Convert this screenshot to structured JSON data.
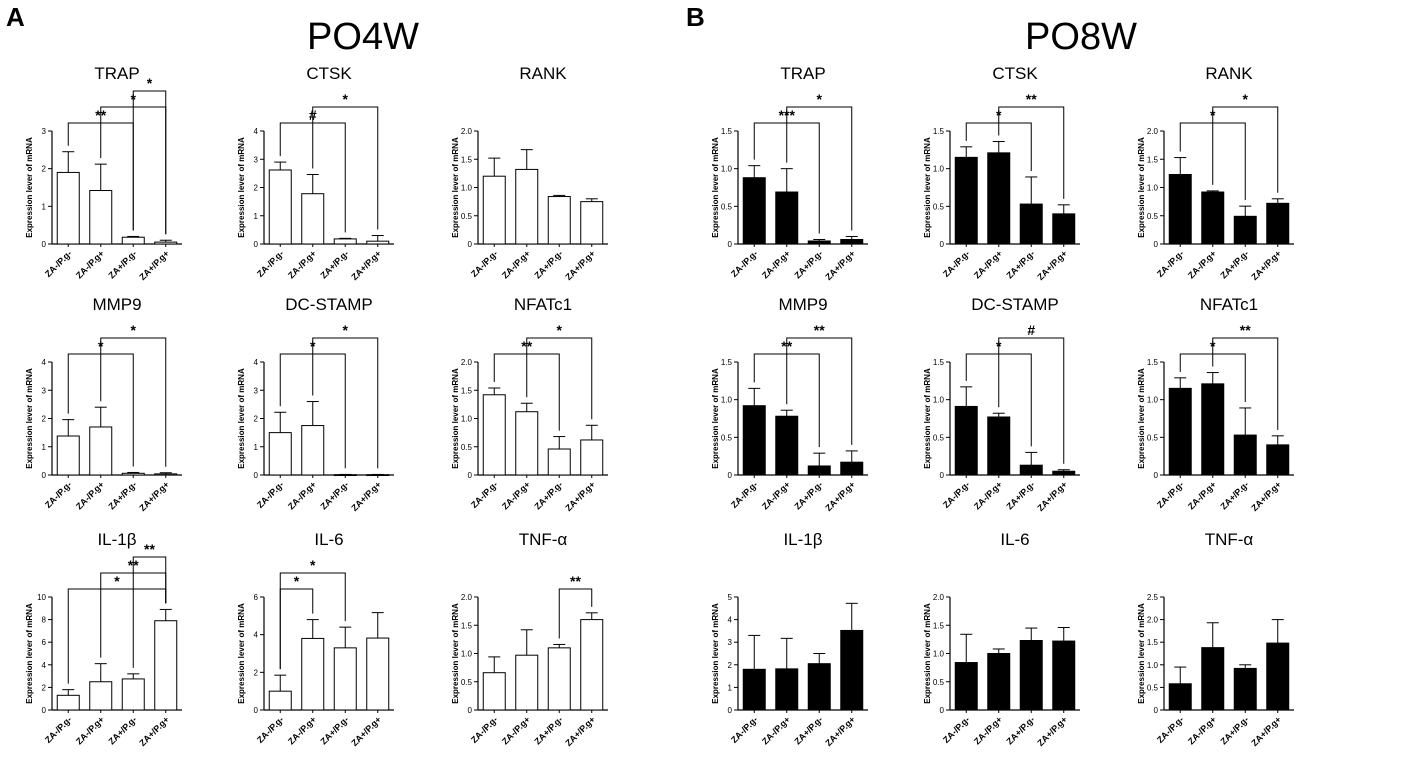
{
  "panels": [
    {
      "letter": "A",
      "title": "PO4W",
      "fill": "#ffffff"
    },
    {
      "letter": "B",
      "title": "PO8W",
      "fill": "#000000"
    }
  ],
  "ylabel": "Expression lever of mRNA",
  "categories": [
    "ZA-/P.g-",
    "ZA-/P.g+",
    "ZA+/P.g-",
    "ZA+/P.g+"
  ],
  "chart_data": [
    {
      "type": "bar",
      "panel": "A",
      "title": "TRAP",
      "ylim": [
        0,
        3
      ],
      "yticks": [
        0,
        1,
        2,
        3
      ],
      "values": [
        1.9,
        1.42,
        0.18,
        0.05
      ],
      "errors": [
        0.55,
        0.7,
        0.02,
        0.05
      ],
      "sig": [
        {
          "from": 0,
          "to": 2,
          "label": "**"
        },
        {
          "from": 1,
          "to": 3,
          "label": "*"
        },
        {
          "from": 2,
          "to": 3,
          "label": "*"
        }
      ]
    },
    {
      "type": "bar",
      "panel": "A",
      "title": "CTSK",
      "ylim": [
        0,
        4
      ],
      "yticks": [
        0,
        1,
        2,
        3,
        4
      ],
      "values": [
        2.62,
        1.78,
        0.18,
        0.1
      ],
      "errors": [
        0.28,
        0.68,
        0.02,
        0.2
      ],
      "sig": [
        {
          "from": 0,
          "to": 2,
          "label": "#"
        },
        {
          "from": 1,
          "to": 3,
          "label": "*"
        }
      ]
    },
    {
      "type": "bar",
      "panel": "A",
      "title": "RANK",
      "ylim": [
        0,
        2
      ],
      "yticks": [
        0,
        0.5,
        1.0,
        1.5,
        2.0
      ],
      "values": [
        1.2,
        1.32,
        0.84,
        0.75
      ],
      "errors": [
        0.32,
        0.35,
        0.02,
        0.05
      ],
      "sig": []
    },
    {
      "type": "bar",
      "panel": "A",
      "title": "MMP9",
      "ylim": [
        0,
        4
      ],
      "yticks": [
        0,
        1,
        2,
        3,
        4
      ],
      "values": [
        1.38,
        1.7,
        0.06,
        0.04
      ],
      "errors": [
        0.58,
        0.7,
        0.03,
        0.04
      ],
      "sig": [
        {
          "from": 0,
          "to": 2,
          "label": "*"
        },
        {
          "from": 1,
          "to": 3,
          "label": "*"
        }
      ]
    },
    {
      "type": "bar",
      "panel": "A",
      "title": "DC-STAMP",
      "ylim": [
        0,
        4
      ],
      "yticks": [
        0,
        1,
        2,
        3,
        4
      ],
      "values": [
        1.5,
        1.75,
        0.01,
        0.01
      ],
      "errors": [
        0.72,
        0.85,
        0.01,
        0.01
      ],
      "sig": [
        {
          "from": 0,
          "to": 2,
          "label": "*"
        },
        {
          "from": 1,
          "to": 3,
          "label": "*"
        }
      ]
    },
    {
      "type": "bar",
      "panel": "A",
      "title": "NFATc1",
      "ylim": [
        0,
        2
      ],
      "yticks": [
        0,
        0.5,
        1.0,
        1.5,
        2.0
      ],
      "values": [
        1.42,
        1.12,
        0.46,
        0.62
      ],
      "errors": [
        0.12,
        0.15,
        0.22,
        0.26
      ],
      "sig": [
        {
          "from": 0,
          "to": 2,
          "label": "**"
        },
        {
          "from": 1,
          "to": 3,
          "label": "*"
        }
      ]
    },
    {
      "type": "bar",
      "panel": "A",
      "title": "IL-1β",
      "ylim": [
        0,
        10
      ],
      "yticks": [
        0,
        2,
        4,
        6,
        8,
        10
      ],
      "values": [
        1.3,
        2.5,
        2.75,
        7.9
      ],
      "errors": [
        0.5,
        1.6,
        0.45,
        1.0
      ],
      "sig": [
        {
          "from": 0,
          "to": 3,
          "label": "*"
        },
        {
          "from": 1,
          "to": 3,
          "label": "**"
        },
        {
          "from": 2,
          "to": 3,
          "label": "**"
        }
      ]
    },
    {
      "type": "bar",
      "panel": "A",
      "title": "IL-6",
      "ylim": [
        0,
        6
      ],
      "yticks": [
        0,
        2,
        4,
        6
      ],
      "values": [
        1.0,
        3.8,
        3.3,
        3.82
      ],
      "errors": [
        0.85,
        1.0,
        1.1,
        1.35
      ],
      "sig": [
        {
          "from": 0,
          "to": 1,
          "label": "*"
        },
        {
          "from": 0,
          "to": 2,
          "label": "*"
        }
      ]
    },
    {
      "type": "bar",
      "panel": "A",
      "title": "TNF-α",
      "ylim": [
        0,
        2
      ],
      "yticks": [
        0,
        0.5,
        1.0,
        1.5,
        2.0
      ],
      "values": [
        0.66,
        0.97,
        1.1,
        1.6
      ],
      "errors": [
        0.28,
        0.45,
        0.06,
        0.12
      ],
      "sig": [
        {
          "from": 2,
          "to": 3,
          "label": "**"
        }
      ]
    },
    {
      "type": "bar",
      "panel": "B",
      "title": "TRAP",
      "ylim": [
        0,
        1.5
      ],
      "yticks": [
        0,
        0.5,
        1.0,
        1.5
      ],
      "ytickfmt": 1,
      "values": [
        0.88,
        0.69,
        0.04,
        0.06
      ],
      "errors": [
        0.16,
        0.31,
        0.02,
        0.04
      ],
      "sig": [
        {
          "from": 0,
          "to": 2,
          "label": "***"
        },
        {
          "from": 1,
          "to": 3,
          "label": "*"
        }
      ]
    },
    {
      "type": "bar",
      "panel": "B",
      "title": "CTSK",
      "ylim": [
        0,
        1.5
      ],
      "yticks": [
        0,
        0.5,
        1.0,
        1.5
      ],
      "values": [
        1.15,
        1.21,
        0.53,
        0.4
      ],
      "errors": [
        0.14,
        0.15,
        0.36,
        0.12
      ],
      "sig": [
        {
          "from": 0,
          "to": 2,
          "label": "*"
        },
        {
          "from": 1,
          "to": 3,
          "label": "**"
        }
      ]
    },
    {
      "type": "bar",
      "panel": "B",
      "title": "RANK",
      "ylim": [
        0,
        2
      ],
      "yticks": [
        0,
        0.5,
        1.0,
        1.5,
        2.0
      ],
      "values": [
        1.23,
        0.92,
        0.49,
        0.72
      ],
      "errors": [
        0.3,
        0.02,
        0.18,
        0.08
      ],
      "sig": [
        {
          "from": 0,
          "to": 2,
          "label": "*"
        },
        {
          "from": 1,
          "to": 3,
          "label": "*"
        }
      ]
    },
    {
      "type": "bar",
      "panel": "B",
      "title": "MMP9",
      "ylim": [
        0,
        1.5
      ],
      "yticks": [
        0,
        0.5,
        1.0,
        1.5
      ],
      "values": [
        0.92,
        0.78,
        0.12,
        0.17
      ],
      "errors": [
        0.23,
        0.08,
        0.17,
        0.15
      ],
      "sig": [
        {
          "from": 0,
          "to": 2,
          "label": "**"
        },
        {
          "from": 1,
          "to": 3,
          "label": "**"
        }
      ]
    },
    {
      "type": "bar",
      "panel": "B",
      "title": "DC-STAMP",
      "ylim": [
        0,
        1.5
      ],
      "yticks": [
        0,
        0.5,
        1.0,
        1.5
      ],
      "values": [
        0.91,
        0.77,
        0.13,
        0.05
      ],
      "errors": [
        0.26,
        0.05,
        0.17,
        0.02
      ],
      "sig": [
        {
          "from": 0,
          "to": 2,
          "label": "*"
        },
        {
          "from": 1,
          "to": 3,
          "label": "#"
        }
      ]
    },
    {
      "type": "bar",
      "panel": "B",
      "title": "NFATc1",
      "ylim": [
        0,
        1.5
      ],
      "yticks": [
        0,
        0.5,
        1.0,
        1.5
      ],
      "values": [
        1.15,
        1.21,
        0.53,
        0.4
      ],
      "errors": [
        0.14,
        0.15,
        0.36,
        0.12
      ],
      "sig": [
        {
          "from": 0,
          "to": 2,
          "label": "*"
        },
        {
          "from": 1,
          "to": 3,
          "label": "**"
        }
      ]
    },
    {
      "type": "bar",
      "panel": "B",
      "title": "IL-1β",
      "ylim": [
        0,
        5
      ],
      "yticks": [
        0,
        1,
        2,
        3,
        4,
        5
      ],
      "values": [
        1.8,
        1.82,
        2.05,
        3.52
      ],
      "errors": [
        1.5,
        1.35,
        0.45,
        1.2
      ],
      "sig": []
    },
    {
      "type": "bar",
      "panel": "B",
      "title": "IL-6",
      "ylim": [
        0,
        2
      ],
      "yticks": [
        0,
        0.5,
        1.0,
        1.5,
        2.0
      ],
      "values": [
        0.84,
        1.0,
        1.23,
        1.22
      ],
      "errors": [
        0.5,
        0.08,
        0.22,
        0.24
      ],
      "sig": []
    },
    {
      "type": "bar",
      "panel": "B",
      "title": "TNF-α",
      "ylim": [
        0,
        2.5
      ],
      "yticks": [
        0,
        0.5,
        1.0,
        1.5,
        2.0,
        2.5
      ],
      "values": [
        0.58,
        1.38,
        0.92,
        1.48
      ],
      "errors": [
        0.37,
        0.55,
        0.08,
        0.52
      ],
      "sig": []
    }
  ]
}
